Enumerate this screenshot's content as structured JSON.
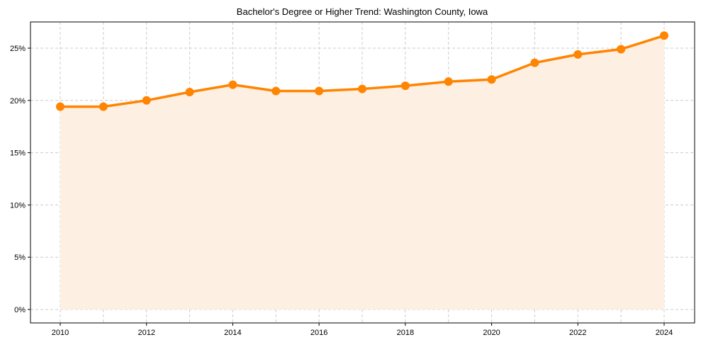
{
  "chart_data": {
    "type": "line",
    "title": "Bachelor's Degree or Higher Trend: Washington County, Iowa",
    "xlabel": "",
    "ylabel": "",
    "x": [
      2010,
      2011,
      2012,
      2013,
      2014,
      2015,
      2016,
      2017,
      2018,
      2019,
      2020,
      2021,
      2022,
      2023,
      2024
    ],
    "series": [
      {
        "name": "Bachelor's Degree or Higher",
        "values": [
          19.4,
          19.4,
          20.0,
          20.8,
          21.5,
          20.9,
          20.9,
          21.1,
          21.4,
          21.8,
          22.0,
          23.6,
          24.4,
          24.9,
          26.2
        ],
        "color": "#ff8400",
        "fill_color": "#fdf0e3",
        "marker": "circle"
      }
    ],
    "xticks": [
      "2010",
      "2012",
      "2014",
      "2016",
      "2018",
      "2020",
      "2022",
      "2024"
    ],
    "yticks": [
      "0%",
      "5%",
      "10%",
      "15%",
      "20%",
      "25%"
    ],
    "ytick_values": [
      0,
      5,
      10,
      15,
      20,
      25
    ],
    "ylim": [
      -1.3,
      27.5
    ],
    "xlim": [
      2009.3,
      2024.7
    ],
    "grid": true,
    "legend": false
  }
}
